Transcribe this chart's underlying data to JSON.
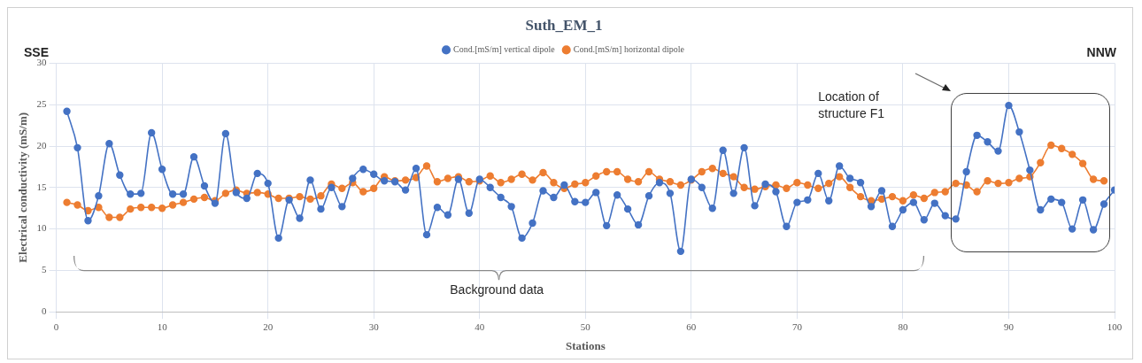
{
  "chart_data": {
    "type": "line",
    "title": "Suth_EM_1",
    "xlabel": "Stations",
    "ylabel": "Electrical conductivity (mS/m)",
    "annotations": [
      "SSE",
      "NNW",
      "Location of structure F1",
      "Background data"
    ],
    "xlim": [
      0,
      100
    ],
    "xticks": [
      0,
      10,
      20,
      30,
      40,
      50,
      60,
      70,
      80,
      90,
      100
    ],
    "ylim": [
      0,
      30
    ],
    "yticks": [
      0,
      5,
      10,
      15,
      20,
      25,
      30
    ],
    "grid": true,
    "legend": "top",
    "marker": "circle",
    "line_style": "solid",
    "series": [
      {
        "name": "Cond.[mS/m] vertical dipole",
        "color": "#4472c4",
        "x": [
          1,
          2,
          3,
          4,
          5,
          6,
          7,
          8,
          9,
          10,
          11,
          12,
          13,
          14,
          15,
          16,
          17,
          18,
          19,
          20,
          21,
          22,
          23,
          24,
          25,
          26,
          27,
          28,
          29,
          30,
          31,
          32,
          33,
          34,
          35,
          36,
          37,
          38,
          39,
          40,
          41,
          42,
          43,
          44,
          45,
          46,
          47,
          48,
          49,
          50,
          51,
          52,
          53,
          54,
          55,
          56,
          57,
          58,
          59,
          60,
          61,
          62,
          63,
          64,
          65,
          66,
          67,
          68,
          69,
          70,
          71,
          72,
          73,
          74,
          75,
          76,
          77,
          78,
          79,
          80,
          81,
          82,
          83,
          84,
          85,
          86,
          87,
          88,
          89,
          90,
          91,
          92,
          93,
          94,
          95,
          96,
          97,
          98,
          99,
          100
        ],
        "values": [
          24.2,
          19.8,
          11.0,
          14.0,
          20.3,
          16.5,
          14.2,
          14.3,
          21.6,
          17.2,
          14.2,
          14.2,
          18.7,
          15.2,
          13.1,
          21.5,
          14.4,
          13.7,
          16.7,
          15.5,
          8.9,
          13.5,
          11.3,
          15.9,
          12.4,
          15.0,
          12.7,
          16.1,
          17.2,
          16.6,
          15.8,
          15.7,
          14.7,
          17.3,
          9.3,
          12.6,
          11.7,
          16.0,
          11.9,
          16.0,
          15.0,
          13.8,
          12.7,
          8.9,
          10.7,
          14.6,
          13.8,
          15.3,
          13.3,
          13.2,
          14.4,
          10.4,
          14.1,
          12.4,
          10.5,
          14.0,
          15.6,
          14.3,
          7.3,
          16.0,
          15.0,
          12.5,
          19.5,
          14.3,
          19.8,
          12.8,
          15.4,
          14.5,
          10.3,
          13.2,
          13.5,
          16.7,
          13.4,
          17.6,
          16.1,
          15.6,
          12.7,
          14.6,
          10.3,
          12.3,
          13.2,
          11.1,
          13.1,
          11.6,
          11.2,
          16.9,
          21.3,
          20.5,
          19.4,
          24.9,
          21.7,
          17.1,
          12.3,
          13.6,
          13.2,
          10.0,
          13.5,
          9.9,
          13.0,
          14.7
        ]
      },
      {
        "name": "Cond.[mS/m] horizontal dipole",
        "color": "#ed7d31",
        "x": [
          1,
          2,
          3,
          4,
          5,
          6,
          7,
          8,
          9,
          10,
          11,
          12,
          13,
          14,
          15,
          16,
          17,
          18,
          19,
          20,
          21,
          22,
          23,
          24,
          25,
          26,
          27,
          28,
          29,
          30,
          31,
          32,
          33,
          34,
          35,
          36,
          37,
          38,
          39,
          40,
          41,
          42,
          43,
          44,
          45,
          46,
          47,
          48,
          49,
          50,
          51,
          52,
          53,
          54,
          55,
          56,
          57,
          58,
          59,
          60,
          61,
          62,
          63,
          64,
          65,
          66,
          67,
          68,
          69,
          70,
          71,
          72,
          73,
          74,
          75,
          76,
          77,
          78,
          79,
          80,
          81,
          82,
          83,
          84,
          85,
          86,
          87,
          88,
          89,
          90,
          91,
          92,
          93,
          94,
          95,
          96,
          97,
          98,
          99
        ],
        "values": [
          13.2,
          12.9,
          12.2,
          12.6,
          11.4,
          11.4,
          12.4,
          12.6,
          12.6,
          12.5,
          12.9,
          13.2,
          13.6,
          13.8,
          13.4,
          14.3,
          14.7,
          14.3,
          14.4,
          14.2,
          13.7,
          13.7,
          13.9,
          13.6,
          14.0,
          15.4,
          14.9,
          15.6,
          14.5,
          14.9,
          16.3,
          15.8,
          15.9,
          16.2,
          17.6,
          15.7,
          16.1,
          16.3,
          15.7,
          15.8,
          16.4,
          15.6,
          16.0,
          16.6,
          15.9,
          16.8,
          15.6,
          14.9,
          15.4,
          15.6,
          16.4,
          16.9,
          16.9,
          16.0,
          15.7,
          16.9,
          16.0,
          15.7,
          15.3,
          15.9,
          16.9,
          17.3,
          16.7,
          16.3,
          15.0,
          14.8,
          15.1,
          15.3,
          14.9,
          15.6,
          15.3,
          14.9,
          15.5,
          16.3,
          15.0,
          13.9,
          13.4,
          13.6,
          13.9,
          13.4,
          14.1,
          13.7,
          14.4,
          14.5,
          15.5,
          15.3,
          14.5,
          15.8,
          15.5,
          15.6,
          16.1,
          16.3,
          18.0,
          20.1,
          19.7,
          19.0,
          17.9,
          16.0,
          15.8
        ]
      }
    ]
  }
}
